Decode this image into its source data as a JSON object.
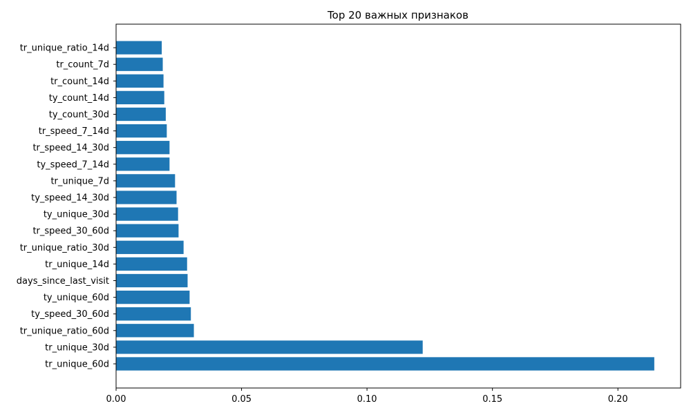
{
  "chart_data": {
    "type": "bar",
    "orientation": "horizontal",
    "title": "Top 20 важных признаков",
    "xlabel": "",
    "ylabel": "",
    "xlim": [
      0,
      0.225
    ],
    "x_ticks": [
      0.0,
      0.05,
      0.1,
      0.15,
      0.2
    ],
    "x_tick_labels": [
      "0.00",
      "0.05",
      "0.10",
      "0.15",
      "0.20"
    ],
    "grid": false,
    "bar_color": "#1f77b4",
    "categories": [
      "tr_unique_60d",
      "tr_unique_30d",
      "tr_unique_ratio_60d",
      "ty_speed_30_60d",
      "ty_unique_60d",
      "days_since_last_visit",
      "tr_unique_14d",
      "tr_unique_ratio_30d",
      "tr_speed_30_60d",
      "ty_unique_30d",
      "ty_speed_14_30d",
      "tr_unique_7d",
      "ty_speed_7_14d",
      "tr_speed_14_30d",
      "tr_speed_7_14d",
      "ty_count_30d",
      "ty_count_14d",
      "tr_count_14d",
      "tr_count_7d",
      "tr_unique_ratio_14d"
    ],
    "values": [
      0.2145,
      0.1222,
      0.031,
      0.0298,
      0.0293,
      0.0285,
      0.0283,
      0.0269,
      0.0249,
      0.0247,
      0.0241,
      0.0235,
      0.0213,
      0.0213,
      0.0202,
      0.0198,
      0.0192,
      0.0189,
      0.0186,
      0.0182
    ]
  }
}
